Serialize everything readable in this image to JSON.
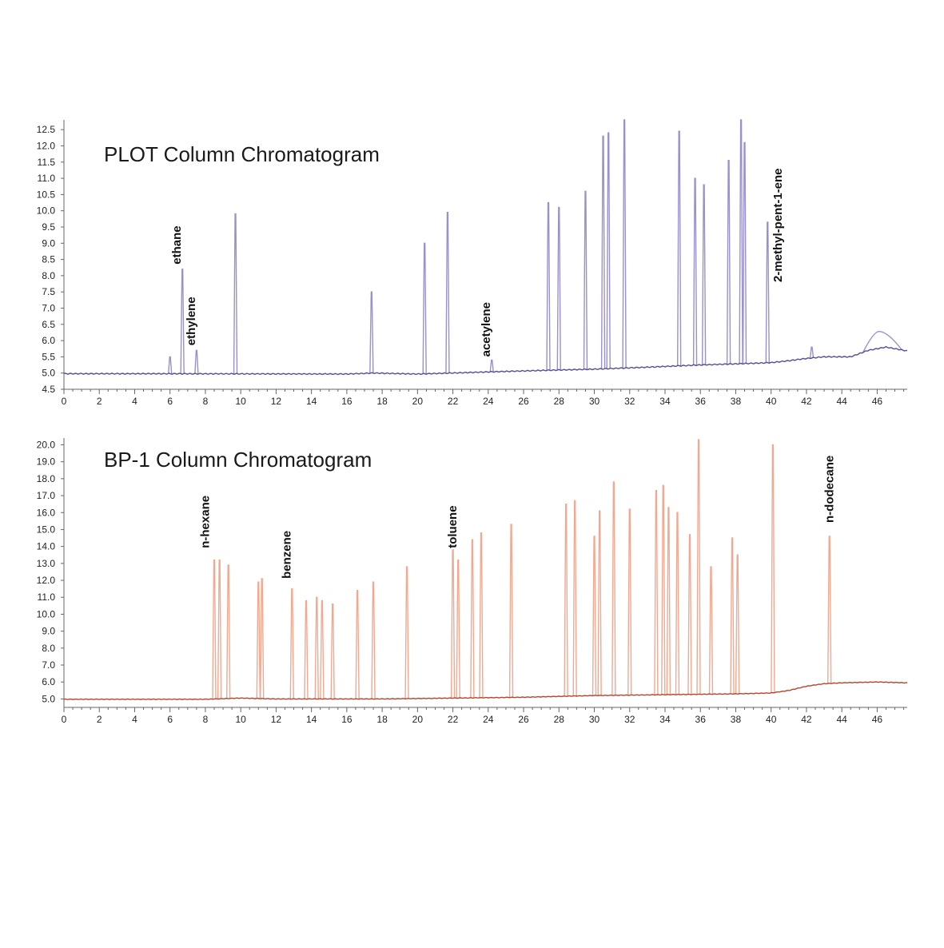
{
  "chart_data": [
    {
      "type": "line",
      "title": "PLOT Column Chromatogram",
      "xlim": [
        0,
        47.7
      ],
      "ylim": [
        4.5,
        12.8
      ],
      "x_ticks": [
        "0",
        "2",
        "4",
        "6",
        "8",
        "10",
        "12",
        "14",
        "16",
        "18",
        "20",
        "22",
        "24",
        "26",
        "28",
        "30",
        "32",
        "34",
        "36",
        "38",
        "40",
        "42",
        "44",
        "46"
      ],
      "y_ticks": [
        "4.5",
        "5.0",
        "5.5",
        "6.0",
        "6.5",
        "7.0",
        "7.5",
        "8.0",
        "8.5",
        "9.0",
        "9.5",
        "10.0",
        "10.5",
        "11.0",
        "11.5",
        "12.0",
        "12.5"
      ],
      "line_color": "#5a4a9a",
      "peak_color": "#9a90cc",
      "grid": false,
      "baseline": [
        [
          0,
          4.98
        ],
        [
          5,
          4.98
        ],
        [
          16,
          4.97
        ],
        [
          17.5,
          5.0
        ],
        [
          20,
          4.97
        ],
        [
          25,
          5.05
        ],
        [
          27,
          5.08
        ],
        [
          30,
          5.12
        ],
        [
          33,
          5.18
        ],
        [
          36,
          5.25
        ],
        [
          39,
          5.3
        ],
        [
          40,
          5.32
        ],
        [
          41,
          5.38
        ],
        [
          42,
          5.45
        ],
        [
          43,
          5.5
        ],
        [
          44.5,
          5.5
        ],
        [
          45.5,
          5.7
        ],
        [
          46.5,
          5.8
        ],
        [
          47.7,
          5.68
        ]
      ],
      "peaks": [
        {
          "x": 6.0,
          "y": 5.5
        },
        {
          "x": 6.7,
          "y": 8.2
        },
        {
          "x": 7.5,
          "y": 5.7
        },
        {
          "x": 9.7,
          "y": 9.9
        },
        {
          "x": 17.4,
          "y": 7.5
        },
        {
          "x": 20.4,
          "y": 9.0
        },
        {
          "x": 21.7,
          "y": 9.95
        },
        {
          "x": 24.2,
          "y": 5.4
        },
        {
          "x": 27.4,
          "y": 10.25
        },
        {
          "x": 28.0,
          "y": 10.1
        },
        {
          "x": 29.5,
          "y": 10.6
        },
        {
          "x": 30.5,
          "y": 12.3
        },
        {
          "x": 30.8,
          "y": 12.4
        },
        {
          "x": 31.7,
          "y": 12.8
        },
        {
          "x": 34.8,
          "y": 12.45
        },
        {
          "x": 35.7,
          "y": 11.0
        },
        {
          "x": 36.2,
          "y": 10.8
        },
        {
          "x": 37.6,
          "y": 11.55
        },
        {
          "x": 38.3,
          "y": 12.8
        },
        {
          "x": 38.5,
          "y": 12.1
        },
        {
          "x": 39.8,
          "y": 9.65
        },
        {
          "x": 42.3,
          "y": 5.8
        },
        {
          "x": 46.1,
          "y": 6.28,
          "wide": true
        }
      ],
      "annotations": [
        {
          "label": "ethane",
          "x": 6.7,
          "y": 8.35
        },
        {
          "label": "ethylene",
          "x": 7.5,
          "y": 5.85
        },
        {
          "label": "acetylene",
          "x": 24.2,
          "y": 5.5
        },
        {
          "label": "2-methyl-pent-1-ene",
          "x": 40.7,
          "y": 7.8
        }
      ]
    },
    {
      "type": "line",
      "title": "BP-1 Column Chromatogram",
      "xlim": [
        0,
        47.7
      ],
      "ylim": [
        4.5,
        20.4
      ],
      "x_ticks": [
        "0",
        "2",
        "4",
        "6",
        "8",
        "10",
        "12",
        "14",
        "16",
        "18",
        "20",
        "22",
        "24",
        "26",
        "28",
        "30",
        "32",
        "34",
        "36",
        "38",
        "40",
        "42",
        "44",
        "46"
      ],
      "y_ticks": [
        "5.0",
        "6.0",
        "7.0",
        "8.0",
        "9.0",
        "10.0",
        "11.0",
        "12.0",
        "13.0",
        "14.0",
        "15.0",
        "16.0",
        "17.0",
        "18.0",
        "19.0",
        "20.0"
      ],
      "line_color": "#b8432c",
      "peak_color": "#f2a890",
      "grid": false,
      "baseline": [
        [
          0,
          4.98
        ],
        [
          8,
          4.98
        ],
        [
          10,
          5.05
        ],
        [
          12,
          5.0
        ],
        [
          18,
          5.0
        ],
        [
          22,
          5.05
        ],
        [
          26,
          5.1
        ],
        [
          30,
          5.2
        ],
        [
          34,
          5.25
        ],
        [
          38,
          5.3
        ],
        [
          40,
          5.35
        ],
        [
          41,
          5.5
        ],
        [
          42,
          5.75
        ],
        [
          43,
          5.9
        ],
        [
          44,
          5.95
        ],
        [
          46,
          6.0
        ],
        [
          47.7,
          5.95
        ]
      ],
      "peaks": [
        {
          "x": 8.5,
          "y": 13.2
        },
        {
          "x": 8.8,
          "y": 13.2
        },
        {
          "x": 9.3,
          "y": 12.9
        },
        {
          "x": 11.0,
          "y": 11.9
        },
        {
          "x": 11.2,
          "y": 12.1
        },
        {
          "x": 12.9,
          "y": 11.5
        },
        {
          "x": 13.7,
          "y": 10.8
        },
        {
          "x": 14.3,
          "y": 11.0
        },
        {
          "x": 14.6,
          "y": 10.8
        },
        {
          "x": 15.2,
          "y": 10.6
        },
        {
          "x": 16.6,
          "y": 11.4
        },
        {
          "x": 17.5,
          "y": 11.9
        },
        {
          "x": 19.4,
          "y": 12.8
        },
        {
          "x": 22.0,
          "y": 13.8
        },
        {
          "x": 22.3,
          "y": 13.2
        },
        {
          "x": 23.1,
          "y": 14.4
        },
        {
          "x": 23.6,
          "y": 14.8
        },
        {
          "x": 25.3,
          "y": 15.3
        },
        {
          "x": 28.4,
          "y": 16.5
        },
        {
          "x": 28.9,
          "y": 16.7
        },
        {
          "x": 30.0,
          "y": 14.6
        },
        {
          "x": 30.3,
          "y": 16.1
        },
        {
          "x": 31.1,
          "y": 17.8
        },
        {
          "x": 32.0,
          "y": 16.2
        },
        {
          "x": 33.5,
          "y": 17.3
        },
        {
          "x": 33.9,
          "y": 17.6
        },
        {
          "x": 34.2,
          "y": 16.3
        },
        {
          "x": 34.7,
          "y": 16.0
        },
        {
          "x": 35.4,
          "y": 14.7
        },
        {
          "x": 35.9,
          "y": 20.3
        },
        {
          "x": 36.6,
          "y": 12.8
        },
        {
          "x": 37.8,
          "y": 14.5
        },
        {
          "x": 38.1,
          "y": 13.5
        },
        {
          "x": 40.1,
          "y": 20.0
        },
        {
          "x": 43.3,
          "y": 14.6
        }
      ],
      "annotations": [
        {
          "label": "n-hexane",
          "x": 8.3,
          "y": 13.9
        },
        {
          "label": "benzene",
          "x": 12.9,
          "y": 12.1
        },
        {
          "label": "toluene",
          "x": 22.3,
          "y": 13.9
        },
        {
          "label": "n-dodecane",
          "x": 43.6,
          "y": 15.4
        }
      ]
    }
  ]
}
